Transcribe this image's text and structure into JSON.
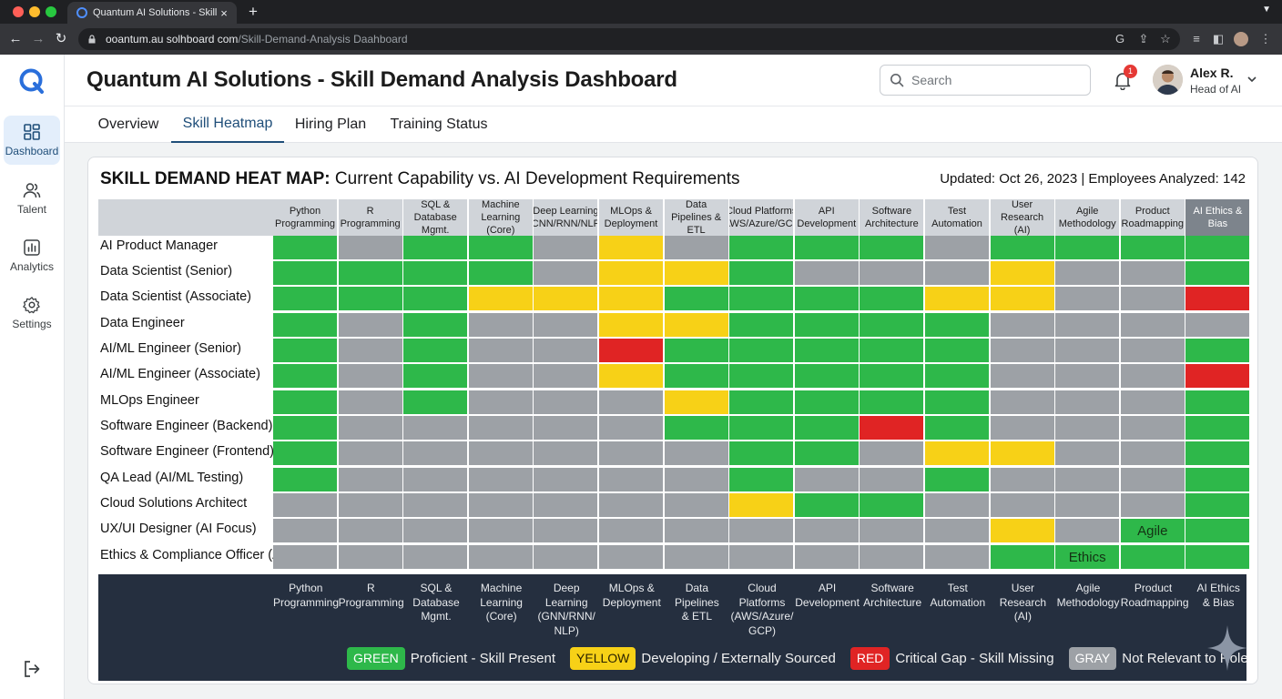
{
  "browser": {
    "tab_title": "Quantum AI Solutions - Skill |",
    "url_host": "ooantum.au solhboard com",
    "url_path": "/Skill-Demand-Analysis Daahboard"
  },
  "sidebar": {
    "items": [
      {
        "label": "Dashboard",
        "icon": "dashboard-icon",
        "active": true
      },
      {
        "label": "Talent",
        "icon": "people-icon"
      },
      {
        "label": "Analytics",
        "icon": "analytics-icon"
      },
      {
        "label": "Settings",
        "icon": "gear-icon"
      }
    ]
  },
  "header": {
    "title": "Quantum AI Solutions - Skill Demand Analysis Dashboard",
    "search_placeholder": "Search",
    "notifications": "1",
    "user_name": "Alex R.",
    "user_role": "Head of AI"
  },
  "tabs": [
    "Overview",
    "Skill Heatmap",
    "Hiring Plan",
    "Training Status"
  ],
  "active_tab": 1,
  "card": {
    "title_bold": "SKILL DEMAND HEAT MAP:",
    "title_rest": " Current Capability vs. AI Development Requirements",
    "meta": "Updated: Oct 26, 2023 | Employees Analyzed: 142"
  },
  "colors": {
    "green": "#2eb84a",
    "yellow": "#f7d117",
    "red": "#e02424",
    "gray": "#9da1a6",
    "legend_bg": "#252f3f",
    "accent": "#1f4e79"
  },
  "heatmap": {
    "columns": [
      "Python\nProgramming",
      "R\nProgramming",
      "SQL &\nDatabase Mgmt.",
      "Machine\nLearning (Core)",
      "Deep Learning\n(CNN/RNN/NLP)",
      "MLOps &\nDeployment",
      "Data\nPipelines & ETL",
      "Cloud Platforms\n(AWS/Azure/GCP)",
      "API\nDevelopment",
      "Software\nArchitecture",
      "Test\nAutomation",
      "User Research\n(AI)",
      "Agile\nMethodology",
      "Product\nRoadmapping",
      "AI Ethics &\nBias"
    ],
    "rows": [
      {
        "role": "AI Product Manager",
        "cells": [
          "G",
          "N",
          "G",
          "G",
          "N",
          "Y",
          "N",
          "G",
          "G",
          "G",
          "N",
          "G",
          "G",
          "G",
          "G"
        ]
      },
      {
        "role": "Data Scientist (Senior)",
        "cells": [
          "G",
          "G",
          "G",
          "G",
          "N",
          "Y",
          "Y",
          "G",
          "N",
          "N",
          "N",
          "Y",
          "N",
          "N",
          "G"
        ]
      },
      {
        "role": "Data Scientist (Associate)",
        "cells": [
          "G",
          "G",
          "G",
          "Y",
          "Y",
          "Y",
          "G",
          "G",
          "G",
          "G",
          "Y",
          "Y",
          "N",
          "N",
          "R"
        ]
      },
      {
        "role": "Data Engineer",
        "cells": [
          "G",
          "N",
          "G",
          "N",
          "N",
          "Y",
          "Y",
          "G",
          "G",
          "G",
          "G",
          "N",
          "N",
          "N",
          "N"
        ]
      },
      {
        "role": "AI/ML Engineer (Senior)",
        "cells": [
          "G",
          "N",
          "G",
          "N",
          "N",
          "R",
          "G",
          "G",
          "G",
          "G",
          "G",
          "N",
          "N",
          "N",
          "G"
        ]
      },
      {
        "role": "AI/ML Engineer (Associate)",
        "cells": [
          "G",
          "N",
          "G",
          "N",
          "N",
          "Y",
          "G",
          "G",
          "G",
          "G",
          "G",
          "N",
          "N",
          "N",
          "R"
        ]
      },
      {
        "role": "MLOps Engineer",
        "cells": [
          "G",
          "N",
          "G",
          "N",
          "N",
          "N",
          "Y",
          "G",
          "G",
          "G",
          "G",
          "N",
          "N",
          "N",
          "G"
        ]
      },
      {
        "role": "Software Engineer (Backend)",
        "cells": [
          "G",
          "N",
          "N",
          "N",
          "N",
          "N",
          "G",
          "G",
          "G",
          "R",
          "G",
          "N",
          "N",
          "N",
          "G"
        ]
      },
      {
        "role": "Software Engineer (Frontend)",
        "cells": [
          "G",
          "N",
          "N",
          "N",
          "N",
          "N",
          "N",
          "G",
          "G",
          "N",
          "Y",
          "Y",
          "N",
          "N",
          "G"
        ]
      },
      {
        "role": "QA Lead (AI/ML Testing)",
        "cells": [
          "G",
          "N",
          "N",
          "N",
          "N",
          "N",
          "N",
          "G",
          "N",
          "N",
          "G",
          "N",
          "N",
          "N",
          "G"
        ]
      },
      {
        "role": "Cloud Solutions Architect",
        "cells": [
          "N",
          "N",
          "N",
          "N",
          "N",
          "N",
          "N",
          "Y",
          "G",
          "G",
          "N",
          "N",
          "N",
          "N",
          "G"
        ]
      },
      {
        "role": "UX/UI Designer (AI Focus)",
        "cells": [
          "N",
          "N",
          "N",
          "N",
          "N",
          "N",
          "N",
          "N",
          "N",
          "N",
          "N",
          "Y",
          "N",
          "G",
          "G"
        ]
      },
      {
        "role": "Ethics & Compliance Officer (AI",
        "cells": [
          "N",
          "N",
          "N",
          "N",
          "N",
          "N",
          "N",
          "N",
          "N",
          "N",
          "N",
          "G",
          "G",
          "G",
          "G"
        ]
      }
    ],
    "cell_labels": [
      {
        "row": 11,
        "col": 13,
        "text": "Agile"
      },
      {
        "row": 12,
        "col": 12,
        "text": "Ethics"
      }
    ]
  },
  "legend": {
    "columns": [
      "Python\nProgramming",
      "R\nProgramming",
      "SQL &\nDatabase\nMgmt.",
      "Machine\nLearning\n(Core)",
      "Deep\nLearning\n(GNN/RNN/\nNLP)",
      "MLOps &\nDeployment",
      "Data\nPipelines\n& ETL",
      "Cloud\nPlatforms\n(AWS/Azure/\nGCP)",
      "API\nDevelopment",
      "Software\nArchitecture",
      "Test\nAutomation",
      "User\nResearch\n(AI)",
      "Agile\nMethodology",
      "Product\nRoadmapping",
      "AI Ethics\n& Bias"
    ],
    "items": [
      {
        "tag": "GREEN",
        "label": "Proficient - Skill Present"
      },
      {
        "tag": "YELLOW",
        "label": "Developing / Externally Sourced"
      },
      {
        "tag": "RED",
        "label": "Critical Gap - Skill Missing"
      },
      {
        "tag": "GRAY",
        "label": "Not Relevant to Role"
      }
    ]
  }
}
